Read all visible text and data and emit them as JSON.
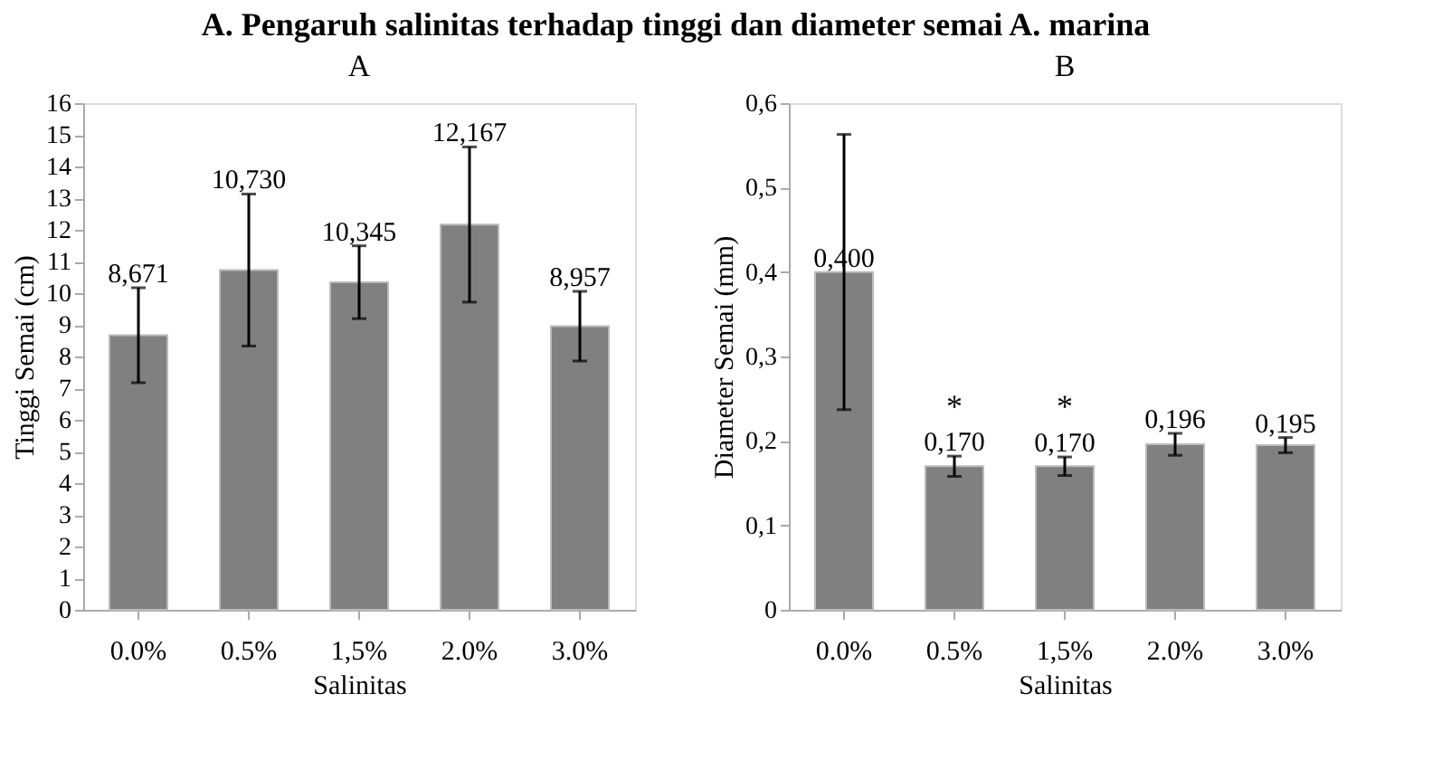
{
  "chart_data": [
    {
      "type": "bar",
      "title": "A.  Pengaruh salinitas terhadap tinggi dan diameter semai A. marina",
      "subtitle": "A",
      "xlabel": "Salinitas",
      "ylabel": "Tinggi Semai (cm)",
      "categories": [
        "0.0%",
        "0.5%",
        "1,5%",
        "2.0%",
        "3.0%"
      ],
      "values": [
        8.671,
        10.73,
        10.345,
        12.167,
        8.957
      ],
      "color": "#808080",
      "errors": [
        1.5,
        2.4,
        1.15,
        2.45,
        1.1
      ],
      "value_labels": [
        "8,671",
        "10,730",
        "10,345",
        "12,167",
        "8,957"
      ],
      "ylim": [
        0,
        16
      ],
      "yticks": [
        0,
        1,
        2,
        3,
        4,
        5,
        6,
        7,
        8,
        9,
        10,
        11,
        12,
        13,
        14,
        15,
        16
      ],
      "grid": false
    },
    {
      "type": "bar",
      "subtitle": "B",
      "xlabel": "Salinitas",
      "ylabel": "Diameter Semai (mm)",
      "categories": [
        "0.0%",
        "0.5%",
        "1,5%",
        "2.0%",
        "3.0%"
      ],
      "values": [
        0.4,
        0.17,
        0.17,
        0.196,
        0.195
      ],
      "color": "#808080",
      "errors": [
        0.163,
        0.012,
        0.011,
        0.013,
        0.009
      ],
      "value_labels": [
        "0,400",
        "0,170",
        "0,170",
        "0,196",
        "0,195"
      ],
      "annotations": [
        {
          "text": "*",
          "x": "0.5%",
          "y": 0.17
        },
        {
          "text": "*",
          "x": "1,5%",
          "y": 0.17
        }
      ],
      "ylim": [
        0,
        0.6
      ],
      "yticks": [
        0,
        {
          "value": 0.1,
          "label": "0,1"
        },
        {
          "value": 0.2,
          "label": "0,2"
        },
        {
          "value": 0.3,
          "label": "0,3"
        },
        {
          "value": 0.4,
          "label": "0,4"
        },
        {
          "value": 0.5,
          "label": "0,5"
        },
        {
          "value": 0.6,
          "label": "0,6"
        }
      ],
      "grid": false
    }
  ]
}
